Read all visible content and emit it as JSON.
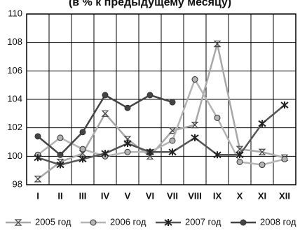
{
  "chart_data": {
    "type": "line",
    "title": "(в % к предыдущему месяцу)",
    "categories": [
      "I",
      "II",
      "III",
      "IV",
      "V",
      "VI",
      "VII",
      "VIII",
      "IX",
      "X",
      "XI",
      "XII"
    ],
    "series": [
      {
        "name": "2005 год",
        "color": "#a8a8a8",
        "marker": "x",
        "values": [
          98.4,
          99.6,
          100.2,
          103.0,
          101.2,
          100.0,
          101.8,
          102.2,
          107.9,
          100.5,
          100.3,
          99.9
        ]
      },
      {
        "name": "2006 год",
        "color": "#b4b4b4",
        "marker": "circle",
        "values": [
          100.1,
          101.3,
          100.5,
          100.0,
          100.3,
          100.3,
          101.1,
          105.4,
          102.7,
          99.6,
          99.4,
          99.8
        ]
      },
      {
        "name": "2007 год",
        "color": "#555555",
        "marker": "star",
        "values": [
          99.9,
          99.4,
          99.8,
          100.2,
          100.9,
          100.3,
          100.3,
          101.3,
          100.1,
          100.1,
          102.3,
          103.6
        ]
      },
      {
        "name": "2008 год",
        "color": "#444444",
        "marker": "circle",
        "values": [
          101.4,
          100.1,
          101.7,
          104.3,
          103.4,
          104.3,
          103.8,
          null,
          null,
          null,
          null,
          null
        ]
      }
    ],
    "ylim": [
      98,
      110
    ],
    "yticks": [
      98,
      100,
      102,
      104,
      106,
      108,
      110
    ],
    "grid": true
  }
}
